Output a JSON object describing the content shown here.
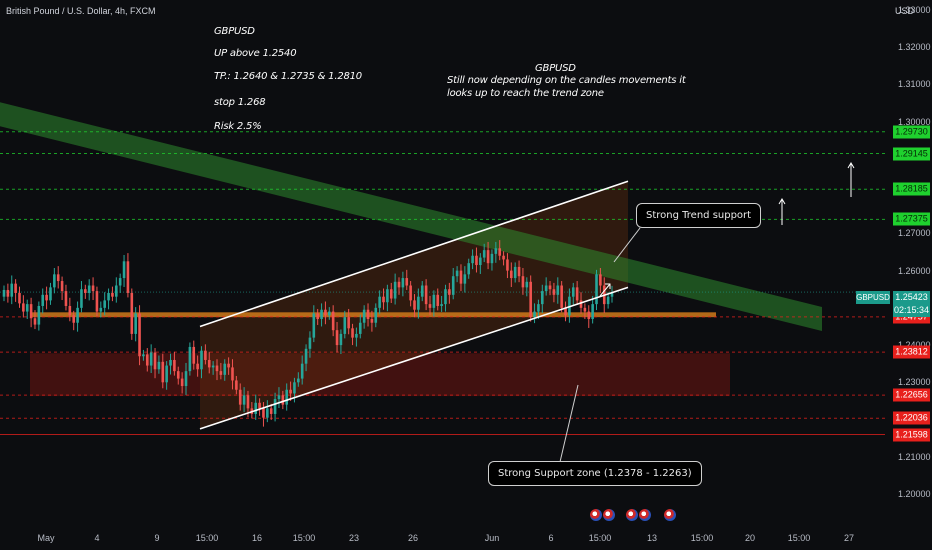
{
  "header": {
    "title": "British Pound / U.S. Dollar, 4h, FXCM",
    "currency": "USD"
  },
  "annotations": {
    "trade_lines": [
      "GBPUSD",
      "UP above 1.2540",
      "TP.: 1.2640  & 1.2735 & 1.2810",
      " stop 1.268",
      "Risk 2.5%"
    ],
    "note_title": "GBPUSD",
    "note_line1": "Still now depending on the candles movements it",
    "note_line2": "looks up to reach the trend zone",
    "trend_callout": "Strong Trend support",
    "support_callout": "Strong Support zone (1.2378 - 1.2263)"
  },
  "symbol_tag": "GBPUSD",
  "current_price": {
    "price": "1.25423",
    "countdown": "02:15:34"
  },
  "colors": {
    "bull": "#26a69a",
    "bear": "#ef5350",
    "green_level": "#1fd12e",
    "red_level": "#e8201c",
    "channel": "#ffffff",
    "trend_zone": "#2e8b2e",
    "support_zone": "#6e1510",
    "orange_zone": "#d07a1a"
  },
  "chart_data": {
    "type": "candlestick",
    "y_axis": {
      "ylim": [
        1.2,
        1.33
      ],
      "ticks": [
        "1.33000",
        "1.32000",
        "1.31000",
        "1.30000",
        "1.27000",
        "1.26000",
        "1.24000",
        "1.23000",
        "1.21000",
        "1.20000"
      ]
    },
    "x_axis": {
      "ticks": [
        "May",
        "4",
        "9",
        "15:00",
        "16",
        "15:00",
        "23",
        "26",
        "Jun",
        "6",
        "15:00",
        "13",
        "15:00",
        "20",
        "15:00",
        "27"
      ]
    },
    "price_labels": [
      {
        "value": "1.29730",
        "kind": "green"
      },
      {
        "value": "1.29145",
        "kind": "green"
      },
      {
        "value": "1.28185",
        "kind": "green"
      },
      {
        "value": "1.27375",
        "kind": "green"
      },
      {
        "value": "1.24757",
        "kind": "red"
      },
      {
        "value": "1.23812",
        "kind": "red"
      },
      {
        "value": "1.22656",
        "kind": "red"
      },
      {
        "value": "1.22036",
        "kind": "red"
      },
      {
        "value": "1.21598",
        "kind": "red"
      }
    ],
    "candles_close": [
      1.2548,
      1.253,
      1.2565,
      1.254,
      1.2512,
      1.249,
      1.251,
      1.2472,
      1.2455,
      1.2505,
      1.2535,
      1.252,
      1.2555,
      1.259,
      1.2572,
      1.2545,
      1.2505,
      1.248,
      1.246,
      1.25,
      1.255,
      1.254,
      1.256,
      1.2545,
      1.249,
      1.25,
      1.252,
      1.254,
      1.253,
      1.256,
      1.258,
      1.2625,
      1.254,
      1.243,
      1.2485,
      1.237,
      1.2375,
      1.2345,
      1.238,
      1.2335,
      1.2355,
      1.23,
      1.2345,
      1.236,
      1.233,
      1.231,
      1.229,
      1.233,
      1.2395,
      1.235,
      1.2335,
      1.2385,
      1.236,
      1.234,
      1.2345,
      1.233,
      1.232,
      1.235,
      1.234,
      1.2305,
      1.228,
      1.224,
      1.2265,
      1.223,
      1.2215,
      1.2245,
      1.223,
      1.2205,
      1.223,
      1.2215,
      1.2255,
      1.2265,
      1.224,
      1.228,
      1.227,
      1.23,
      1.231,
      1.235,
      1.239,
      1.242,
      1.2485,
      1.247,
      1.2495,
      1.248,
      1.249,
      1.244,
      1.24,
      1.243,
      1.2475,
      1.2445,
      1.242,
      1.243,
      1.246,
      1.2495,
      1.247,
      1.246,
      1.25,
      1.253,
      1.2515,
      1.255,
      1.2525,
      1.257,
      1.2555,
      1.258,
      1.256,
      1.252,
      1.2495,
      1.253,
      1.256,
      1.251,
      1.25,
      1.2535,
      1.2505,
      1.251,
      1.255,
      1.2535,
      1.2585,
      1.26,
      1.2565,
      1.259,
      1.262,
      1.264,
      1.2615,
      1.2635,
      1.2655,
      1.262,
      1.2645,
      1.266,
      1.264,
      1.263,
      1.26,
      1.258,
      1.261,
      1.2585,
      1.2555,
      1.257,
      1.2475,
      1.249,
      1.251,
      1.2545,
      1.256,
      1.255,
      1.2535,
      1.256,
      1.25,
      1.248,
      1.253,
      1.2555,
      1.252,
      1.25,
      1.249,
      1.247,
      1.251,
      1.259,
      1.256,
      1.251,
      1.253,
      1.2542
    ],
    "channel": {
      "lower_start": 1.2175,
      "lower_end": 1.2555,
      "upper_start": 1.245,
      "upper_end": 1.284
    },
    "zones": {
      "support": [
        1.2263,
        1.2378
      ],
      "orange": [
        1.2475,
        1.2488
      ],
      "trend_band_center_start": 1.302,
      "trend_band_center_end": 1.247
    }
  }
}
